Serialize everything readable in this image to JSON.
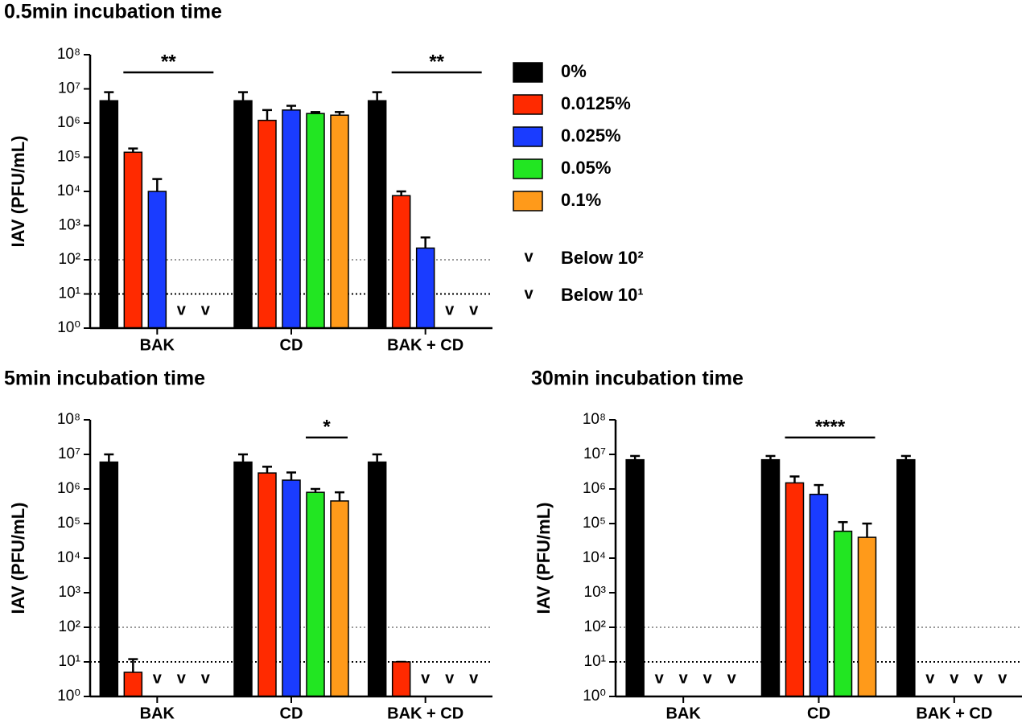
{
  "chart_data": [
    {
      "type": "bar",
      "title": "0.5min incubation time",
      "ylabel": "IAV (PFU/mL)",
      "yscale": "log",
      "categories": [
        "BAK",
        "CD",
        "BAK + CD"
      ],
      "ylim": [
        1,
        100000000
      ],
      "yticks": [
        {
          "value": 1,
          "label": "10⁰"
        },
        {
          "value": 10,
          "label": "10¹"
        },
        {
          "value": 100,
          "label": "10²"
        },
        {
          "value": 1000,
          "label": "10³"
        },
        {
          "value": 10000,
          "label": "10⁴"
        },
        {
          "value": 100000,
          "label": "10⁵"
        },
        {
          "value": 1000000,
          "label": "10⁶"
        },
        {
          "value": 10000000,
          "label": "10⁷"
        },
        {
          "value": 100000000,
          "label": "10⁸"
        }
      ],
      "reference_lines": [
        {
          "value": 100,
          "color": "#999999"
        },
        {
          "value": 10,
          "color": "#000000"
        }
      ],
      "series": [
        {
          "name": "0%",
          "color": "#000000",
          "values": [
            4500000,
            4500000,
            4500000
          ],
          "errors": [
            3500000,
            3500000,
            3500000
          ],
          "below": [
            null,
            null,
            null
          ]
        },
        {
          "name": "0.0125%",
          "color": "#ff2a00",
          "values": [
            140000,
            1200000,
            7500
          ],
          "errors": [
            40000,
            1200000,
            2500
          ],
          "below": [
            null,
            null,
            null
          ]
        },
        {
          "name": "0.025%",
          "color": "#1a3cff",
          "values": [
            10000,
            2400000,
            220
          ],
          "errors": [
            13000,
            800000,
            230
          ],
          "below": [
            null,
            null,
            null
          ]
        },
        {
          "name": "0.05%",
          "color": "#22e622",
          "values": [
            null,
            1900000,
            null
          ],
          "errors": [
            null,
            200000,
            null
          ],
          "below": [
            100,
            null,
            100
          ]
        },
        {
          "name": "0.1%",
          "color": "#ff9a1a",
          "values": [
            null,
            1700000,
            null
          ],
          "errors": [
            null,
            400000,
            null
          ],
          "below": [
            100,
            null,
            100
          ]
        }
      ],
      "significance": [
        {
          "label": "**",
          "category": 0,
          "from_series": 1,
          "to_series": 4
        },
        {
          "label": "**",
          "category": 2,
          "from_series": 1,
          "to_series": 4
        }
      ],
      "detection_legend": [
        {
          "symbol": "v",
          "label": "Below 10²",
          "limit": 100,
          "color": "#999999"
        },
        {
          "symbol": "v",
          "label": "Below 10¹",
          "limit": 10,
          "color": "#000000"
        }
      ]
    },
    {
      "type": "bar",
      "title": "5min incubation time",
      "ylabel": "IAV (PFU/mL)",
      "yscale": "log",
      "categories": [
        "BAK",
        "CD",
        "BAK + CD"
      ],
      "ylim": [
        1,
        100000000
      ],
      "yticks": [
        {
          "value": 1,
          "label": "10⁰"
        },
        {
          "value": 10,
          "label": "10¹"
        },
        {
          "value": 100,
          "label": "10²"
        },
        {
          "value": 1000,
          "label": "10³"
        },
        {
          "value": 10000,
          "label": "10⁴"
        },
        {
          "value": 100000,
          "label": "10⁵"
        },
        {
          "value": 1000000,
          "label": "10⁶"
        },
        {
          "value": 10000000,
          "label": "10⁷"
        },
        {
          "value": 100000000,
          "label": "10⁸"
        }
      ],
      "reference_lines": [
        {
          "value": 100,
          "color": "#999999"
        },
        {
          "value": 10,
          "color": "#000000"
        }
      ],
      "series": [
        {
          "name": "0%",
          "color": "#000000",
          "values": [
            6000000,
            6000000,
            6000000
          ],
          "errors": [
            4000000,
            4000000,
            4000000
          ],
          "below": [
            null,
            null,
            null
          ]
        },
        {
          "name": "0.0125%",
          "color": "#ff2a00",
          "values": [
            5,
            2900000,
            10
          ],
          "errors": [
            7,
            1500000,
            0
          ],
          "below": [
            null,
            null,
            null
          ]
        },
        {
          "name": "0.025%",
          "color": "#1a3cff",
          "values": [
            null,
            1800000,
            null
          ],
          "errors": [
            null,
            1200000,
            null
          ],
          "below": [
            10,
            null,
            10
          ]
        },
        {
          "name": "0.05%",
          "color": "#22e622",
          "values": [
            null,
            800000,
            null
          ],
          "errors": [
            null,
            200000,
            null
          ],
          "below": [
            100,
            null,
            100
          ]
        },
        {
          "name": "0.1%",
          "color": "#ff9a1a",
          "values": [
            null,
            450000,
            null
          ],
          "errors": [
            null,
            350000,
            null
          ],
          "below": [
            100,
            null,
            100
          ]
        }
      ],
      "significance": [
        {
          "label": "*",
          "category": 1,
          "from_series": 3,
          "to_series": 4
        }
      ]
    },
    {
      "type": "bar",
      "title": "30min incubation time",
      "ylabel": "IAV (PFU/mL)",
      "yscale": "log",
      "categories": [
        "BAK",
        "CD",
        "BAK + CD"
      ],
      "ylim": [
        1,
        100000000
      ],
      "yticks": [
        {
          "value": 1,
          "label": "10⁰"
        },
        {
          "value": 10,
          "label": "10¹"
        },
        {
          "value": 100,
          "label": "10²"
        },
        {
          "value": 1000,
          "label": "10³"
        },
        {
          "value": 10000,
          "label": "10⁴"
        },
        {
          "value": 100000,
          "label": "10⁵"
        },
        {
          "value": 1000000,
          "label": "10⁶"
        },
        {
          "value": 10000000,
          "label": "10⁷"
        },
        {
          "value": 100000000,
          "label": "10⁸"
        }
      ],
      "reference_lines": [
        {
          "value": 100,
          "color": "#999999"
        },
        {
          "value": 10,
          "color": "#000000"
        }
      ],
      "series": [
        {
          "name": "0%",
          "color": "#000000",
          "values": [
            7000000,
            7000000,
            7000000
          ],
          "errors": [
            2000000,
            2000000,
            2000000
          ],
          "below": [
            null,
            null,
            null
          ]
        },
        {
          "name": "0.0125%",
          "color": "#ff2a00",
          "values": [
            null,
            1500000,
            null
          ],
          "errors": [
            null,
            800000,
            null
          ],
          "below": [
            10,
            null,
            10
          ]
        },
        {
          "name": "0.025%",
          "color": "#1a3cff",
          "values": [
            null,
            700000,
            null
          ],
          "errors": [
            null,
            600000,
            null
          ],
          "below": [
            10,
            null,
            10
          ]
        },
        {
          "name": "0.05%",
          "color": "#22e622",
          "values": [
            null,
            60000,
            null
          ],
          "errors": [
            null,
            50000,
            null
          ],
          "below": [
            100,
            null,
            100
          ]
        },
        {
          "name": "0.1%",
          "color": "#ff9a1a",
          "values": [
            null,
            40000,
            null
          ],
          "errors": [
            null,
            60000,
            null
          ],
          "below": [
            100,
            null,
            100
          ]
        }
      ],
      "significance": [
        {
          "label": "****",
          "category": 1,
          "from_series": 1,
          "to_series": 4
        }
      ]
    }
  ]
}
